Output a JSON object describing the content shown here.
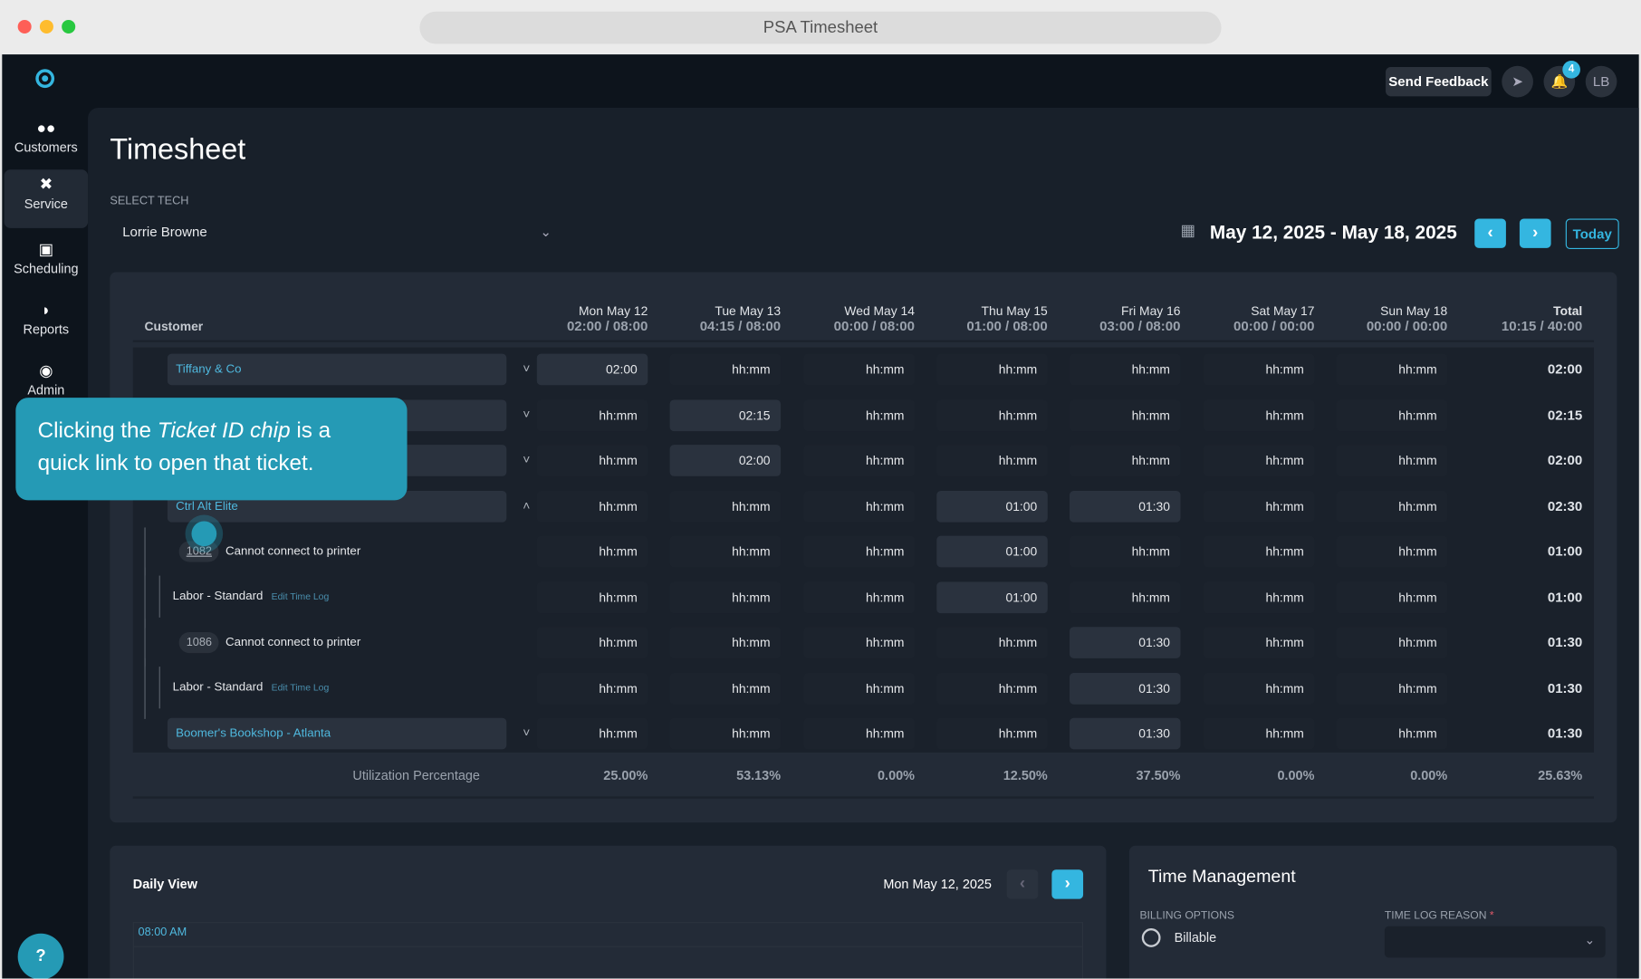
{
  "window": {
    "title": "PSA Timesheet"
  },
  "topbar": {
    "send_feedback": "Send Feedback",
    "notification_count": "4",
    "avatar_initials": "LB"
  },
  "sidebar": {
    "items": [
      {
        "label": "Customers",
        "icon": "users-icon"
      },
      {
        "label": "Service",
        "icon": "tools-icon",
        "active": true
      },
      {
        "label": "Scheduling",
        "icon": "calendar-icon"
      },
      {
        "label": "Reports",
        "icon": "pie-chart-icon"
      },
      {
        "label": "Admin",
        "icon": "admin-shield-icon"
      }
    ],
    "help": "?"
  },
  "page": {
    "title": "Timesheet",
    "select_tech_label": "SELECT TECH",
    "selected_tech": "Lorrie Browne",
    "date_range": "May 12, 2025 - May 18, 2025",
    "today": "Today"
  },
  "table": {
    "customer_header": "Customer",
    "days": [
      {
        "label": "Mon May 12",
        "hours": "02:00 / 08:00"
      },
      {
        "label": "Tue May 13",
        "hours": "04:15 / 08:00"
      },
      {
        "label": "Wed May 14",
        "hours": "00:00 / 08:00"
      },
      {
        "label": "Thu May 15",
        "hours": "01:00 / 08:00"
      },
      {
        "label": "Fri May 16",
        "hours": "03:00 / 08:00"
      },
      {
        "label": "Sat May 17",
        "hours": "00:00 / 00:00"
      },
      {
        "label": "Sun May 18",
        "hours": "00:00 / 00:00"
      }
    ],
    "total_header": {
      "label": "Total",
      "hours": "10:15 / 40:00"
    },
    "placeholder": "hh:mm",
    "rows": [
      {
        "type": "customer",
        "name": "Tiffany & Co",
        "expanded": false,
        "values": [
          "02:00",
          "",
          "",
          "",
          "",
          "",
          ""
        ],
        "total": "02:00"
      },
      {
        "type": "customer",
        "name": "",
        "expanded": false,
        "values": [
          "",
          "02:15",
          "",
          "",
          "",
          "",
          ""
        ],
        "total": "02:15"
      },
      {
        "type": "customer",
        "name": "",
        "expanded": false,
        "values": [
          "",
          "02:00",
          "",
          "",
          "",
          "",
          ""
        ],
        "total": "02:00"
      },
      {
        "type": "customer",
        "name": "Ctrl Alt Elite",
        "expanded": true,
        "values": [
          "",
          "",
          "",
          "01:00",
          "01:30",
          "",
          ""
        ],
        "total": "02:30"
      },
      {
        "type": "ticket",
        "ticket_id": "1082",
        "name": "Cannot connect to printer",
        "values": [
          "",
          "",
          "",
          "01:00",
          "",
          "",
          ""
        ],
        "total": "01:00"
      },
      {
        "type": "log",
        "name": "Labor - Standard",
        "link": "Edit Time Log",
        "values": [
          "",
          "",
          "",
          "01:00",
          "",
          "",
          ""
        ],
        "total": "01:00"
      },
      {
        "type": "ticket",
        "ticket_id": "1086",
        "name": "Cannot connect to printer",
        "values": [
          "",
          "",
          "",
          "",
          "01:30",
          "",
          ""
        ],
        "total": "01:30"
      },
      {
        "type": "log",
        "name": "Labor - Standard",
        "link": "Edit Time Log",
        "values": [
          "",
          "",
          "",
          "",
          "01:30",
          "",
          ""
        ],
        "total": "01:30"
      },
      {
        "type": "customer",
        "name": "Boomer's Bookshop - Atlanta",
        "expanded": false,
        "values": [
          "",
          "",
          "",
          "",
          "01:30",
          "",
          ""
        ],
        "total": "01:30"
      }
    ],
    "utilization": {
      "label": "Utilization Percentage",
      "values": [
        "25.00%",
        "53.13%",
        "0.00%",
        "12.50%",
        "37.50%",
        "0.00%",
        "0.00%"
      ],
      "total": "25.63%"
    }
  },
  "tooltip": {
    "before": "Clicking the ",
    "emphasis": "Ticket ID chip",
    "after": " is a quick link to open that ticket."
  },
  "daily_view": {
    "title": "Daily View",
    "date": "Mon May 12, 2025",
    "first_time": "08:00 AM"
  },
  "time_management": {
    "title": "Time Management",
    "billing_label": "BILLING OPTIONS",
    "billable": "Billable",
    "reason_label": "TIME LOG REASON",
    "required_mark": "*"
  },
  "colors": {
    "accent": "#34b6e0",
    "tooltip": "#259ab5",
    "link": "#4fb8de",
    "background": "#18202a",
    "panel": "#232b37"
  }
}
